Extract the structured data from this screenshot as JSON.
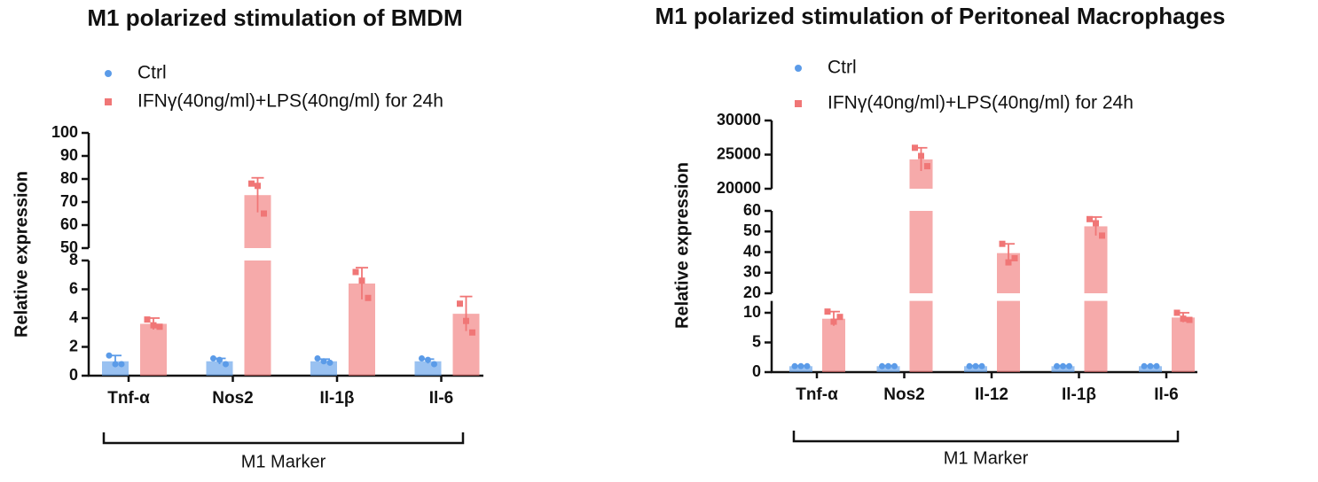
{
  "chart_data": [
    {
      "type": "bar",
      "title": "M1 polarized stimulation of BMDM",
      "y_label": "Relative expression",
      "x_label": "M1 Marker",
      "categories": [
        "Tnf-α",
        "Nos2",
        "Il-1β",
        "Il-6"
      ],
      "y_segments": [
        {
          "ylim": [
            0,
            8
          ],
          "yticks": [
            0,
            2,
            4,
            6,
            8
          ]
        },
        {
          "ylim": [
            50,
            100
          ],
          "yticks": [
            50,
            60,
            70,
            80,
            90,
            100
          ]
        }
      ],
      "series": [
        {
          "name": "Ctrl",
          "color": "#5b9be8",
          "marker": "circle",
          "values": [
            1,
            1,
            1,
            1
          ],
          "errors": [
            0.4,
            0.2,
            0.15,
            0.15
          ],
          "points": [
            [
              1.4,
              0.8,
              0.8
            ],
            [
              1.2,
              1.1,
              0.8
            ],
            [
              1.2,
              1.0,
              0.9
            ],
            [
              1.2,
              1.1,
              0.8
            ]
          ]
        },
        {
          "name": "IFNγ(40ng/ml)+LPS(40ng/ml) for 24h",
          "color": "#f07676",
          "marker": "square",
          "values": [
            3.6,
            73,
            6.4,
            4.3
          ],
          "errors": [
            0.4,
            7.5,
            1.1,
            1.2
          ],
          "points": [
            [
              3.9,
              3.5,
              3.4
            ],
            [
              78,
              77,
              65
            ],
            [
              7.2,
              6.6,
              5.4
            ],
            [
              5.0,
              3.8,
              3.0
            ]
          ]
        }
      ]
    },
    {
      "type": "bar",
      "title": "M1 polarized stimulation of Peritoneal Macrophages",
      "y_label": "Relative expression",
      "x_label": "M1 Marker",
      "categories": [
        "Tnf-α",
        "Nos2",
        "Il-12",
        "Il-1β",
        "Il-6"
      ],
      "y_segments": [
        {
          "ylim": [
            0,
            12
          ],
          "yticks": [
            0,
            5,
            10
          ]
        },
        {
          "ylim": [
            20,
            60
          ],
          "yticks": [
            20,
            30,
            40,
            50,
            60
          ]
        },
        {
          "ylim": [
            20000,
            30000
          ],
          "yticks": [
            20000,
            25000,
            30000
          ]
        }
      ],
      "series": [
        {
          "name": "Ctrl",
          "color": "#5b9be8",
          "marker": "circle",
          "values": [
            1,
            1,
            1,
            1,
            1
          ],
          "errors": [
            0.1,
            0.1,
            0.1,
            0.1,
            0.1
          ],
          "points": [
            [
              1,
              1,
              1
            ],
            [
              1,
              1,
              1
            ],
            [
              1,
              1,
              1
            ],
            [
              1,
              1,
              1
            ],
            [
              1,
              1,
              1
            ]
          ]
        },
        {
          "name": "IFNγ(40ng/ml)+LPS(40ng/ml) for 24h",
          "color": "#f07676",
          "marker": "square",
          "values": [
            9,
            24300,
            39.5,
            52.5,
            9.2
          ],
          "errors": [
            1.2,
            1700,
            4.5,
            4.5,
            0.8
          ],
          "points": [
            [
              10.2,
              8.5,
              9.3
            ],
            [
              26000,
              24800,
              23300
            ],
            [
              44,
              35,
              37
            ],
            [
              56,
              54,
              48
            ],
            [
              10,
              9,
              8.8
            ]
          ]
        }
      ]
    }
  ]
}
